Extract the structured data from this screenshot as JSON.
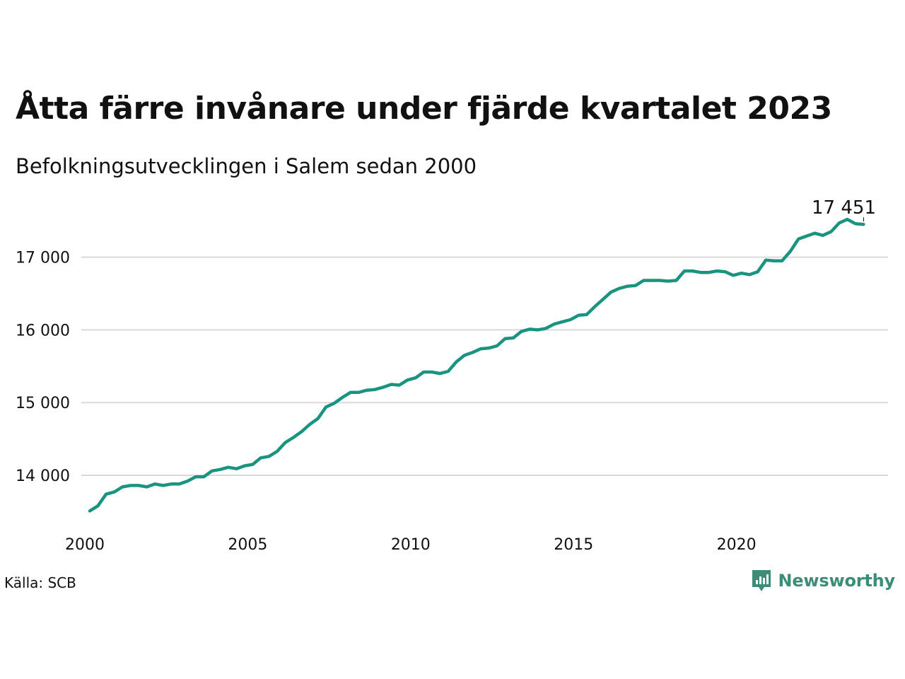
{
  "title": "Åtta färre invånare under fjärde kvartalet 2023",
  "subtitle": "Befolkningsutvecklingen i Salem sedan 2000",
  "source": "Källa: SCB",
  "brand": {
    "name": "Newsworthy",
    "icon": "newsworthy-logo-icon",
    "color": "#3d8c77"
  },
  "colors": {
    "line": "#1a9480",
    "grid": "#d9d9d9",
    "text": "#111111"
  },
  "chart_data": {
    "type": "line",
    "x_start": 2000.0,
    "x_step": 0.25,
    "x_ticks": [
      2000,
      2005,
      2010,
      2015,
      2020
    ],
    "x_tick_labels": [
      "2000",
      "2005",
      "2010",
      "2015",
      "2020"
    ],
    "xlim": [
      2000,
      2024.5
    ],
    "y_ticks": [
      14000,
      15000,
      16000,
      17000
    ],
    "y_tick_labels": [
      "14 000",
      "15 000",
      "16 000",
      "17 000"
    ],
    "ylim": [
      13500,
      17650
    ],
    "grid": "horizontal",
    "legend": "none",
    "end_label": "17 451",
    "values": [
      13510,
      13580,
      13740,
      13770,
      13840,
      13860,
      13860,
      13840,
      13880,
      13860,
      13880,
      13880,
      13920,
      13980,
      13980,
      14060,
      14080,
      14110,
      14090,
      14130,
      14150,
      14240,
      14260,
      14330,
      14450,
      14520,
      14600,
      14700,
      14780,
      14940,
      14990,
      15070,
      15140,
      15140,
      15170,
      15180,
      15210,
      15250,
      15240,
      15310,
      15340,
      15420,
      15420,
      15400,
      15430,
      15560,
      15650,
      15690,
      15740,
      15750,
      15780,
      15880,
      15890,
      15980,
      16010,
      16000,
      16020,
      16080,
      16110,
      16140,
      16200,
      16210,
      16320,
      16420,
      16520,
      16570,
      16600,
      16610,
      16680,
      16680,
      16680,
      16670,
      16680,
      16810,
      16810,
      16790,
      16790,
      16810,
      16800,
      16750,
      16780,
      16760,
      16800,
      16960,
      16950,
      16950,
      17080,
      17250,
      17290,
      17330,
      17300,
      17350,
      17470,
      17520,
      17460,
      17451
    ]
  }
}
